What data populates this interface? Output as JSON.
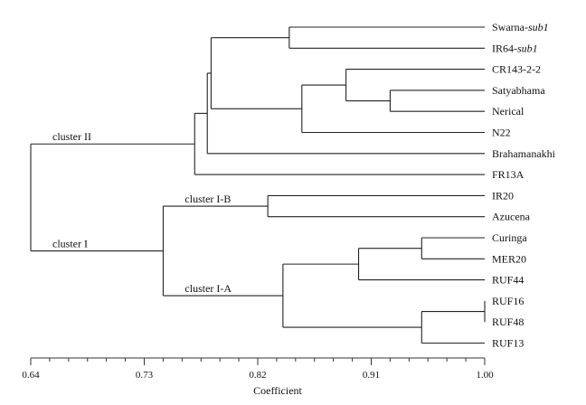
{
  "dendrogram": {
    "leaves": [
      {
        "name": "Swarna-",
        "suffix": "sub1"
      },
      {
        "name": "IR64-",
        "suffix": "sub1"
      },
      {
        "name": "CR143-2-2"
      },
      {
        "name": "Satyabhama"
      },
      {
        "name": "Nerical"
      },
      {
        "name": "N22"
      },
      {
        "name": "Brahamanakhi"
      },
      {
        "name": "FR13A"
      },
      {
        "name": "IR20"
      },
      {
        "name": "Azucena"
      },
      {
        "name": "Curinga"
      },
      {
        "name": "MER20"
      },
      {
        "name": "RUF44"
      },
      {
        "name": "RUF16"
      },
      {
        "name": "RUF48"
      },
      {
        "name": "RUF13"
      }
    ],
    "merges": [
      {
        "a": "L0",
        "b": "L1",
        "h": 0.845
      },
      {
        "a": "L3",
        "b": "L4",
        "h": 0.925
      },
      {
        "a": "L2",
        "b": "N1",
        "h": 0.89
      },
      {
        "a": "N2",
        "b": "L5",
        "h": 0.855
      },
      {
        "a": "N0",
        "b": "N3",
        "h": 0.783
      },
      {
        "a": "N4",
        "b": "L6",
        "h": 0.78
      },
      {
        "a": "N5",
        "b": "L7",
        "h": 0.77
      },
      {
        "a": "L8",
        "b": "L9",
        "h": 0.828
      },
      {
        "a": "L10",
        "b": "L11",
        "h": 0.95
      },
      {
        "a": "N8",
        "b": "L12",
        "h": 0.9
      },
      {
        "a": "L13",
        "b": "L14",
        "h": 1.0
      },
      {
        "a": "N10",
        "b": "L15",
        "h": 0.95
      },
      {
        "a": "N9",
        "b": "N11",
        "h": 0.84
      },
      {
        "a": "N7",
        "b": "N12",
        "h": 0.745
      },
      {
        "a": "N6",
        "b": "N13",
        "h": 0.64
      }
    ],
    "cluster_labels": [
      {
        "text": "cluster II",
        "node": "N6"
      },
      {
        "text": "cluster I",
        "node": "N13"
      },
      {
        "text": "cluster I-B",
        "node": "N7"
      },
      {
        "text": "cluster I-A",
        "node": "N12"
      }
    ]
  },
  "axis": {
    "min": 0.64,
    "max": 1.0,
    "ticks": [
      "0.64",
      "0.73",
      "0.82",
      "0.91",
      "1.00"
    ],
    "title": "Coefficient"
  }
}
